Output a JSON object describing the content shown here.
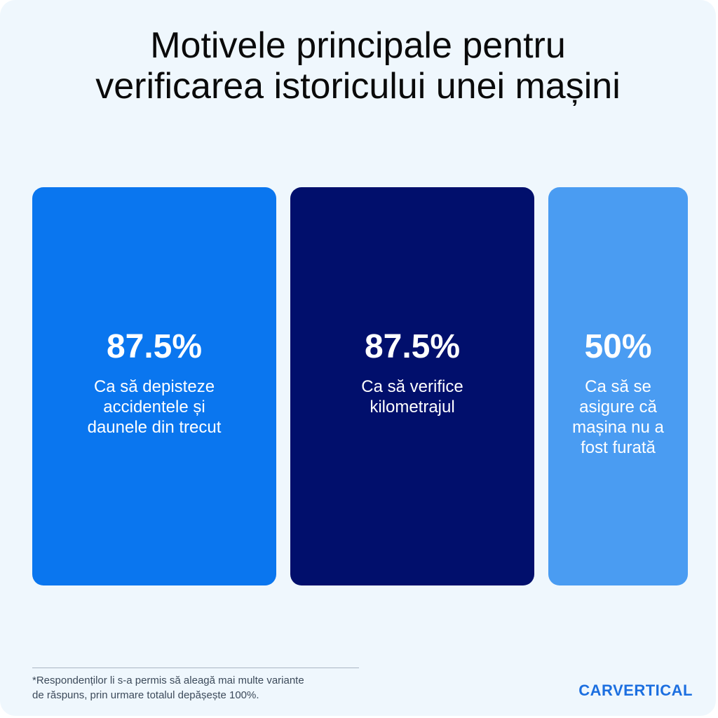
{
  "title_lines": [
    "Motivele principale pentru",
    "verificarea istoricului unei mașini"
  ],
  "chart_data": {
    "type": "bar",
    "title": "Motivele principale pentru verificarea istoricului unei mașini",
    "categories": [
      "Ca să depisteze accidentele și daunele din trecut",
      "Ca să verifice kilometrajul",
      "Ca să se asigure că mașina nu a fost furată"
    ],
    "values": [
      87.5,
      87.5,
      50
    ],
    "value_labels": [
      "87.5%",
      "87.5%",
      "50%"
    ],
    "label_lines": [
      [
        "Ca să depisteze",
        "accidentele și",
        "daunele din trecut"
      ],
      [
        "Ca să verifice",
        "kilometrajul"
      ],
      [
        "Ca să se",
        "asigure că",
        "mașina nu a",
        "fost furată"
      ]
    ],
    "colors": [
      "#0a76ef",
      "#010f6c",
      "#4a9cf2"
    ],
    "unit": "%"
  },
  "footnote_lines": [
    "*Respondenților li s-a permis să aleagă mai multe variante",
    "de răspuns, prin urmare totalul depășește 100%."
  ],
  "brand": "CARVERTICAL"
}
